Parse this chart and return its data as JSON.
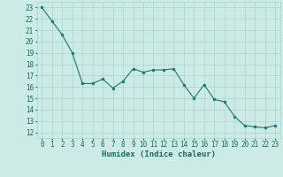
{
  "x": [
    0,
    1,
    2,
    3,
    4,
    5,
    6,
    7,
    8,
    9,
    10,
    11,
    12,
    13,
    14,
    15,
    16,
    17,
    18,
    19,
    20,
    21,
    22,
    23
  ],
  "y": [
    23.0,
    21.8,
    20.6,
    19.0,
    16.3,
    16.3,
    16.7,
    15.9,
    16.5,
    17.6,
    17.3,
    17.5,
    17.5,
    17.6,
    16.2,
    15.0,
    16.2,
    14.9,
    14.7,
    13.4,
    12.6,
    12.5,
    12.4,
    12.6
  ],
  "line_color": "#1a7a6e",
  "marker_color": "#1a7a6e",
  "bg_color": "#cceae6",
  "grid_color": "#aad4ce",
  "xlabel": "Humidex (Indice chaleur)",
  "ylim": [
    11.5,
    23.5
  ],
  "xlim": [
    -0.5,
    23.5
  ],
  "yticks": [
    12,
    13,
    14,
    15,
    16,
    17,
    18,
    19,
    20,
    21,
    22,
    23
  ],
  "xticks": [
    0,
    1,
    2,
    3,
    4,
    5,
    6,
    7,
    8,
    9,
    10,
    11,
    12,
    13,
    14,
    15,
    16,
    17,
    18,
    19,
    20,
    21,
    22,
    23
  ],
  "tick_fontsize": 5.5,
  "xlabel_fontsize": 6.5,
  "label_color": "#1a6b60"
}
